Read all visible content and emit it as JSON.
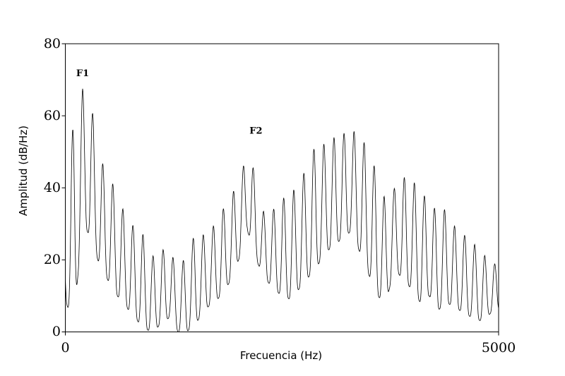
{
  "chart_data": {
    "type": "line",
    "title": "",
    "xlabel": "Frecuencia (Hz)",
    "ylabel": "Amplitud (dB/Hz)",
    "xlim": [
      0,
      5000
    ],
    "ylim": [
      0,
      80
    ],
    "x_tick_labels": [
      "0",
      "5000"
    ],
    "y_tick_labels": [
      "0",
      "20",
      "40",
      "60",
      "80"
    ],
    "grid": false,
    "legend": "none",
    "line_color": "#000000",
    "annotations": [
      {
        "text": "F1",
        "x": 200,
        "y": 71
      },
      {
        "text": "F2",
        "x": 2200,
        "y": 55
      }
    ],
    "peaks": {
      "x": [
        0,
        100,
        200,
        300,
        400,
        500,
        600,
        700,
        800,
        900,
        1000,
        1100,
        1200,
        1300,
        1400,
        1500,
        1600,
        1700,
        1800,
        1900,
        2000,
        2100,
        2150,
        2200,
        2300,
        2400,
        2500,
        2600,
        2700,
        2800,
        2900,
        3000,
        3100,
        3200,
        3300,
        3400,
        3500,
        3600,
        3700,
        3800,
        3900,
        4000,
        4100,
        4200,
        4300,
        4400,
        4500,
        4600,
        4700,
        4800,
        4900,
        5000
      ],
      "y": [
        35,
        60,
        67.5,
        63,
        48,
        44,
        38,
        32,
        29,
        27,
        21,
        22,
        25,
        15,
        23,
        27,
        27,
        29,
        34,
        35,
        45,
        47,
        51,
        37,
        33,
        34,
        37,
        38,
        42,
        46,
        53,
        52,
        54,
        55,
        56,
        55,
        50,
        44,
        36,
        40,
        43,
        42,
        40,
        35,
        34,
        34,
        29,
        27,
        25,
        22,
        20,
        18
      ]
    },
    "valleys": [
      8,
      4,
      30,
      26,
      18,
      14,
      10,
      7,
      4,
      1,
      0,
      2,
      4,
      0,
      0,
      2,
      6,
      8,
      10,
      14,
      20,
      28,
      25,
      20,
      15,
      12,
      10,
      9,
      12,
      15,
      18,
      22,
      24,
      26,
      28,
      22,
      16,
      10,
      8,
      18,
      14,
      12,
      8,
      10,
      6,
      8,
      7,
      5,
      4,
      3,
      5,
      6
    ]
  }
}
